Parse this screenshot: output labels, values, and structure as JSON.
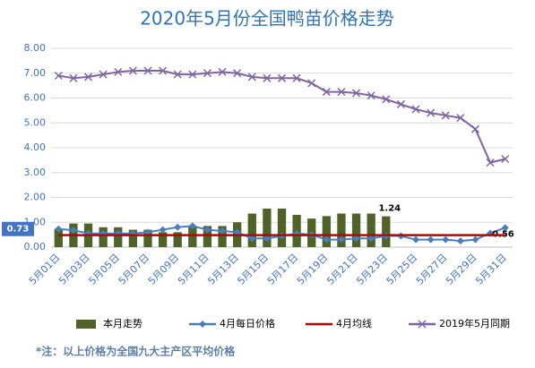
{
  "chart_data": {
    "type": "combo",
    "title": "2020年5月份全国鸭苗价格走势",
    "categories": [
      "5月01日",
      null,
      "5月03日",
      null,
      "5月05日",
      null,
      "5月07日",
      null,
      "5月09日",
      null,
      "5月11日",
      null,
      "5月13日",
      null,
      "5月15日",
      null,
      "5月17日",
      null,
      "5月19日",
      null,
      "5月21日",
      null,
      "5月23日",
      null,
      "5月25日",
      null,
      "5月27日",
      null,
      "5月29日",
      null,
      "5月31日"
    ],
    "ylim": [
      0,
      8
    ],
    "yticks": [
      {
        "value": 0,
        "label": "0.00"
      },
      {
        "value": 1,
        "label": "1.00"
      },
      {
        "value": 2,
        "label": "2.00"
      },
      {
        "value": 3,
        "label": "3.00"
      },
      {
        "value": 4,
        "label": "4.00"
      },
      {
        "value": 5,
        "label": "5.00"
      },
      {
        "value": 6,
        "label": "6.00"
      },
      {
        "value": 7,
        "label": "7.00"
      },
      {
        "value": 8,
        "label": "8.00"
      }
    ],
    "grid": true,
    "legend": "bottom",
    "series": [
      {
        "name": "本月走势",
        "kind": "bar",
        "color": "#4f6228",
        "values": [
          0.73,
          0.95,
          0.95,
          0.8,
          0.8,
          0.7,
          0.7,
          0.6,
          0.6,
          0.85,
          0.85,
          0.85,
          1.0,
          1.35,
          1.55,
          1.55,
          1.3,
          1.15,
          1.25,
          1.35,
          1.35,
          1.35,
          1.24,
          null,
          null,
          null,
          null,
          null,
          null,
          null,
          null
        ],
        "value_labels": [
          null,
          null,
          null,
          null,
          null,
          null,
          null,
          null,
          null,
          null,
          null,
          null,
          null,
          null,
          null,
          null,
          null,
          null,
          null,
          null,
          null,
          null,
          "1.24",
          null,
          null,
          null,
          null,
          null,
          null,
          null,
          null
        ]
      },
      {
        "name": "4月每日价格",
        "kind": "line-diamond",
        "color": "#4a7ebb",
        "values": [
          0.73,
          0.68,
          0.55,
          0.55,
          0.55,
          0.55,
          0.6,
          0.7,
          0.8,
          0.85,
          0.7,
          0.65,
          0.6,
          0.35,
          0.35,
          0.45,
          0.55,
          0.5,
          0.3,
          0.3,
          0.35,
          0.35,
          0.45,
          0.45,
          0.3,
          0.3,
          0.3,
          0.25,
          0.3,
          0.56,
          0.78
        ],
        "value_labels": [
          "0.73",
          null,
          null,
          null,
          null,
          null,
          null,
          null,
          null,
          null,
          null,
          null,
          null,
          null,
          null,
          null,
          null,
          null,
          null,
          null,
          null,
          null,
          null,
          null,
          null,
          null,
          null,
          null,
          null,
          "0.56",
          null
        ]
      },
      {
        "name": "4月均线",
        "kind": "line",
        "color": "#c00000",
        "values": [
          0.48,
          0.48,
          0.48,
          0.48,
          0.48,
          0.48,
          0.48,
          0.48,
          0.48,
          0.48,
          0.48,
          0.48,
          0.48,
          0.48,
          0.48,
          0.48,
          0.48,
          0.48,
          0.48,
          0.48,
          0.48,
          0.48,
          0.48,
          0.48,
          0.48,
          0.48,
          0.48,
          0.48,
          0.48,
          0.48,
          0.48
        ]
      },
      {
        "name": "2019年5月同期",
        "kind": "line-x",
        "color": "#8064a2",
        "values": [
          6.9,
          6.8,
          6.85,
          6.95,
          7.05,
          7.1,
          7.1,
          7.1,
          6.95,
          6.95,
          7.0,
          7.05,
          7.0,
          6.85,
          6.8,
          6.8,
          6.8,
          6.6,
          6.25,
          6.25,
          6.2,
          6.1,
          5.95,
          5.75,
          5.55,
          5.4,
          5.3,
          5.2,
          4.75,
          3.4,
          3.55
        ]
      }
    ],
    "footnote": "*注：以上价格为全国九大主产区平均价格"
  }
}
